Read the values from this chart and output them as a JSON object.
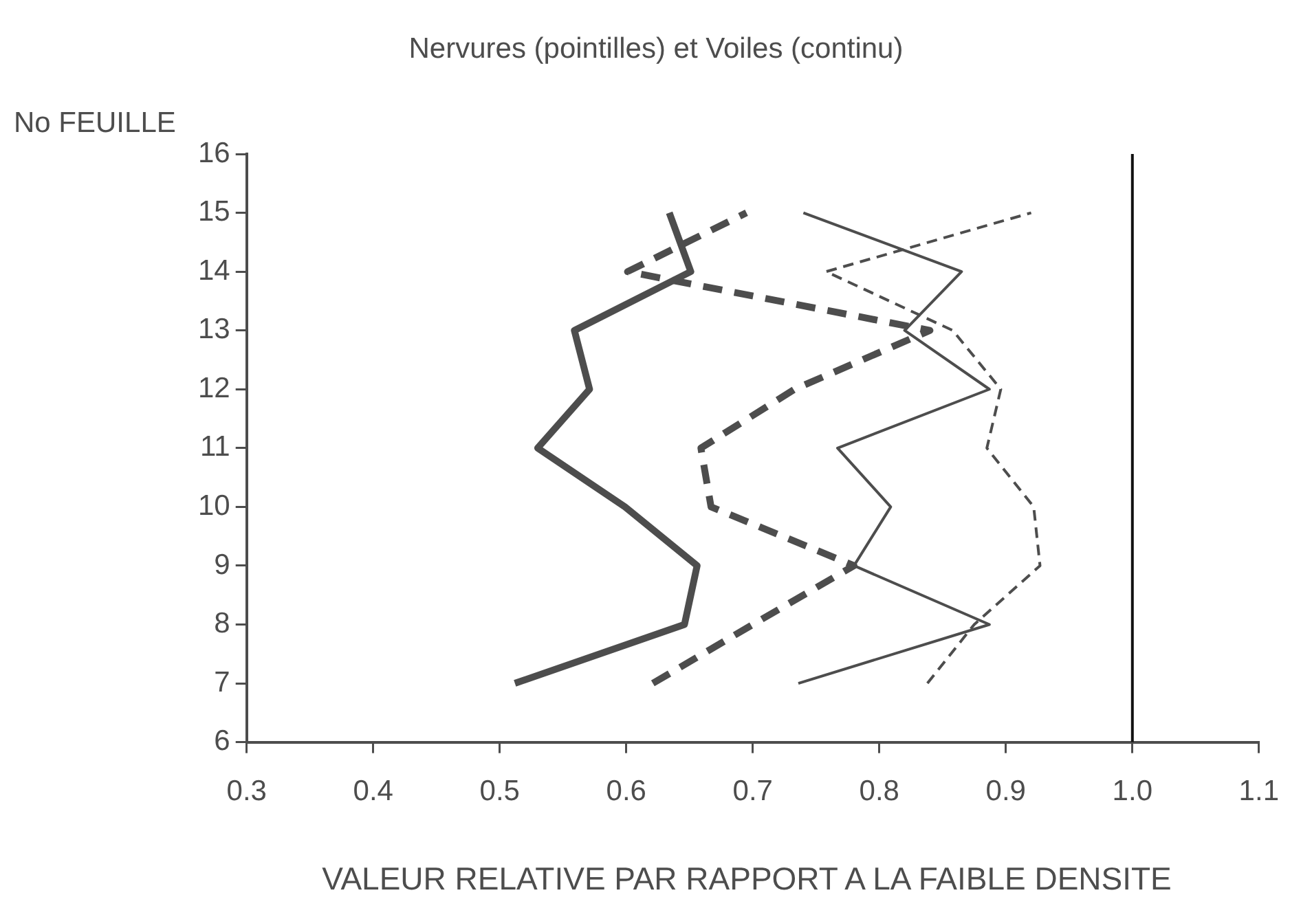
{
  "chart_data": {
    "type": "line",
    "title": "Nervures (pointilles) et Voiles (continu)",
    "xlabel": "VALEUR RELATIVE PAR RAPPORT A LA FAIBLE DENSITE",
    "ylabel": "No FEUILLE",
    "xlim": [
      0.3,
      1.1
    ],
    "xticks": [
      0.3,
      0.4,
      0.5,
      0.6,
      0.7,
      0.8,
      0.9,
      {
        "value": 1,
        "label": "1.0"
      },
      1.1
    ],
    "ylim": [
      6,
      16
    ],
    "yticks": [
      6,
      7,
      8,
      9,
      10,
      11,
      12,
      13,
      14,
      15,
      16
    ],
    "grid": false,
    "legend": false,
    "marker": "none",
    "ref_lines": [
      {
        "axis": "x",
        "value": 1,
        "color": "#111111"
      }
    ],
    "series": [
      {
        "color": "#4d4d4d",
        "line_style": "solid",
        "x": [
          0.512,
          0.646,
          0.656,
          0.599,
          0.53,
          0.571,
          0.559,
          0.651,
          0.634
        ],
        "values": [
          7,
          8,
          9,
          10,
          11,
          12,
          13,
          14,
          15
        ]
      },
      {
        "color": "#4d4d4d",
        "line_style": "dashed",
        "x": [
          0.621,
          0.7,
          0.78,
          0.667,
          0.659,
          0.733,
          0.84,
          0.601,
          0.695
        ],
        "values": [
          7,
          8,
          9,
          10,
          11,
          12,
          13,
          14,
          15
        ]
      },
      {
        "color": "#4d4d4d",
        "line_style": "solid",
        "x": [
          0.736,
          0.887,
          0.78,
          0.809,
          0.767,
          0.887,
          0.82,
          0.865,
          0.74
        ],
        "values": [
          7,
          8,
          9,
          10,
          11,
          12,
          13,
          14,
          15
        ]
      },
      {
        "color": "#4d4d4d",
        "line_style": "dashed",
        "x": [
          0.838,
          0.875,
          0.927,
          0.922,
          0.885,
          0.896,
          0.858,
          0.758,
          0.92
        ],
        "values": [
          7,
          8,
          9,
          10,
          11,
          12,
          13,
          14,
          15
        ]
      }
    ]
  }
}
